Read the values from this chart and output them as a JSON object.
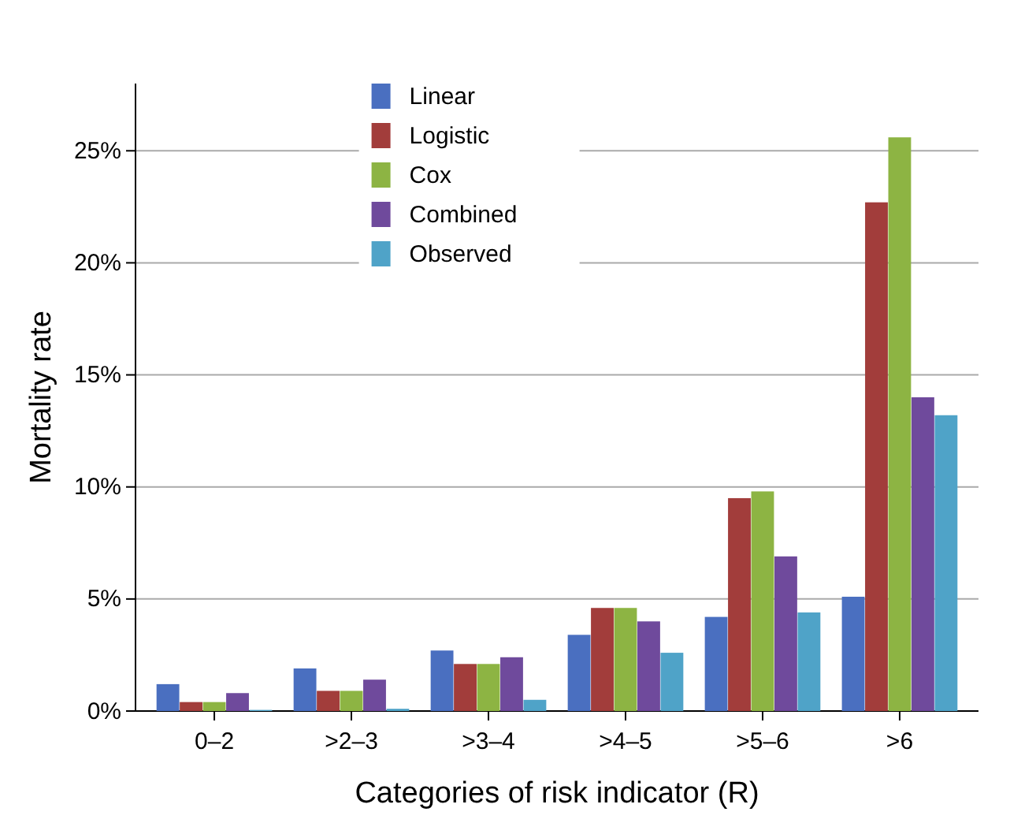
{
  "chart_data": {
    "type": "bar",
    "xlabel": "Categories of risk indicator (R)",
    "ylabel": "Mortality rate",
    "categories": [
      "0–2",
      ">2–3",
      ">3–4",
      ">4–5",
      ">5–6",
      ">6"
    ],
    "series": [
      {
        "name": "Linear",
        "color": "#4a6fc0",
        "values": [
          1.2,
          1.9,
          2.7,
          3.4,
          4.2,
          5.1
        ]
      },
      {
        "name": "Logistic",
        "color": "#a23d3b",
        "values": [
          0.4,
          0.9,
          2.1,
          4.6,
          9.5,
          22.7
        ]
      },
      {
        "name": "Cox",
        "color": "#8db443",
        "values": [
          0.4,
          0.9,
          2.1,
          4.6,
          9.8,
          25.6
        ]
      },
      {
        "name": "Combined",
        "color": "#6f4a9c",
        "values": [
          0.8,
          1.4,
          2.4,
          4.0,
          6.9,
          14.0
        ]
      },
      {
        "name": "Observed",
        "color": "#4fa3c8",
        "values": [
          0.05,
          0.1,
          0.5,
          2.6,
          4.4,
          13.2
        ]
      }
    ],
    "ylim": [
      0,
      28
    ],
    "yticks": [
      {
        "value": 0,
        "label": "0%"
      },
      {
        "value": 5,
        "label": "5%"
      },
      {
        "value": 10,
        "label": "10%"
      },
      {
        "value": 15,
        "label": "15%"
      },
      {
        "value": 20,
        "label": "20%"
      },
      {
        "value": 25,
        "label": "25%"
      }
    ],
    "grid": true,
    "legend": "top"
  }
}
